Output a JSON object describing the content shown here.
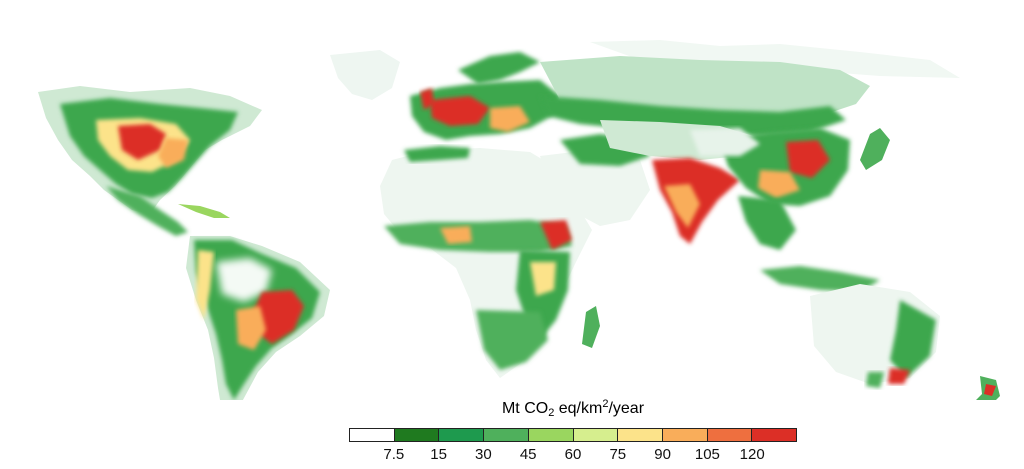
{
  "map": {
    "type": "choropleth-raster",
    "description_layer": "world",
    "legend": {
      "title_prefix": "Mt CO",
      "title_sub": "2",
      "title_mid": " eq/km",
      "title_sup": "2",
      "title_suffix": "/year",
      "bins": [
        {
          "color": "#ffffff"
        },
        {
          "color": "#1f7a1f"
        },
        {
          "color": "#1e9a4e"
        },
        {
          "color": "#4fb05c"
        },
        {
          "color": "#9ad65f"
        },
        {
          "color": "#d6ee8e"
        },
        {
          "color": "#fce38a"
        },
        {
          "color": "#f9ad5a"
        },
        {
          "color": "#ee6f3f"
        },
        {
          "color": "#dc2f26"
        }
      ],
      "tick_labels": [
        "7.5",
        "15",
        "30",
        "45",
        "60",
        "75",
        "90",
        "105",
        "120"
      ]
    },
    "colors": {
      "land_low": "#e6f2ea",
      "land_light": "#bfe3c6",
      "green": "#3da74d",
      "light_green": "#9ad65f",
      "yellow": "#fce38a",
      "orange": "#f9ad5a",
      "red": "#dc2f26"
    }
  }
}
